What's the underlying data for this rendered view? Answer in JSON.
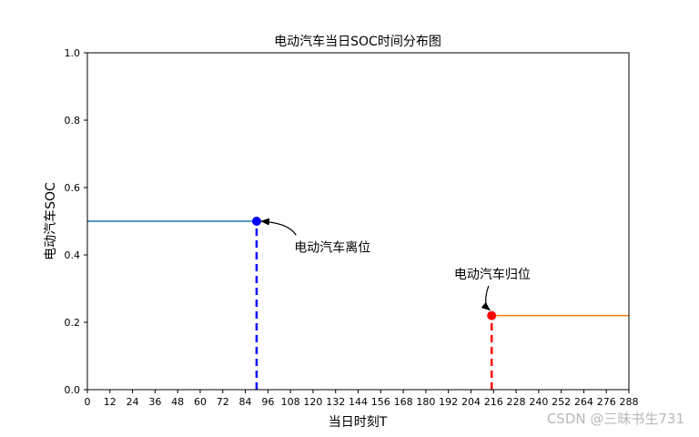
{
  "chart_data": {
    "type": "line",
    "title": "电动汽车当日SOC时间分布图",
    "xlabel": "当日时刻T",
    "ylabel": "电动汽车SOC",
    "xlim": [
      0,
      288
    ],
    "ylim": [
      0,
      1.0
    ],
    "xticks": [
      0,
      12,
      24,
      36,
      48,
      60,
      72,
      84,
      96,
      108,
      120,
      132,
      144,
      156,
      168,
      180,
      192,
      204,
      216,
      228,
      240,
      252,
      264,
      276,
      288
    ],
    "yticks": [
      0,
      0.2,
      0.4,
      0.6,
      0.8,
      1.0
    ],
    "ytick_labels": [
      "0.0",
      "0.2",
      "0.4",
      "0.6",
      "0.8",
      "1.0"
    ],
    "grid": false,
    "series": [
      {
        "color": "#1f77b4",
        "x": [
          0,
          90
        ],
        "y": [
          0.5,
          0.5
        ]
      },
      {
        "color": "#ff7f0e",
        "x": [
          215,
          288
        ],
        "y": [
          0.22,
          0.22
        ]
      }
    ],
    "markers": [
      {
        "x": 90,
        "y": 0.5,
        "color": "#0000ff"
      },
      {
        "x": 215,
        "y": 0.22,
        "color": "#ff0000"
      }
    ],
    "vlines": [
      {
        "x": 90,
        "y_top": 0.5,
        "color": "#0000ff"
      },
      {
        "x": 215,
        "y_top": 0.22,
        "color": "#ff0000"
      }
    ],
    "annotations": [
      {
        "text": "电动汽车离位",
        "x": 90,
        "y": 0.5,
        "text_x": 110,
        "text_y": 0.41
      },
      {
        "text": "电动汽车归位",
        "x": 215,
        "y": 0.22,
        "text_x": 195,
        "text_y": 0.33
      }
    ]
  },
  "watermark": "CSDN @三昧书生731"
}
